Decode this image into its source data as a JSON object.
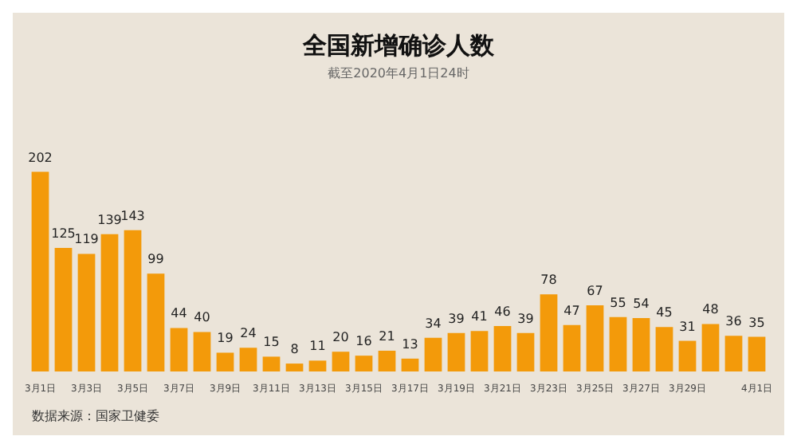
{
  "chart_data": {
    "type": "bar",
    "title": "全国新增确诊人数",
    "subtitle": "截至2020年4月1日24时",
    "categories": [
      "3月1日",
      null,
      "3月3日",
      null,
      "3月5日",
      null,
      "3月7日",
      null,
      "3月9日",
      null,
      "3月11日",
      null,
      "3月13日",
      null,
      "3月15日",
      null,
      "3月17日",
      null,
      "3月19日",
      null,
      "3月21日",
      null,
      "3月23日",
      null,
      "3月25日",
      null,
      "3月27日",
      null,
      "3月29日",
      null,
      null,
      "4月1日"
    ],
    "values": [
      202,
      125,
      119,
      139,
      143,
      99,
      44,
      40,
      19,
      24,
      15,
      8,
      11,
      20,
      16,
      21,
      13,
      34,
      39,
      41,
      46,
      39,
      78,
      47,
      67,
      55,
      54,
      45,
      31,
      48,
      36,
      35
    ],
    "color": "#f39a0a",
    "data_labels": true,
    "grid": false,
    "annotations": [
      "数据来源：国家卫健委"
    ]
  }
}
